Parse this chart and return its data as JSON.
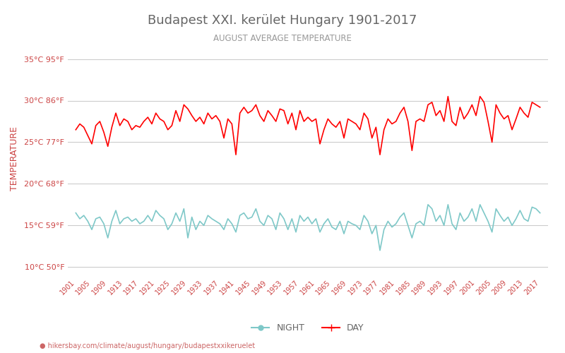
{
  "title": "Budapest XXI. kerület Hungary 1901-2017",
  "subtitle": "AUGUST AVERAGE TEMPERATURE",
  "xlabel_url": "hikersbay.com/climate/august/hungary/budapestxxikeruelet",
  "ylabel": "TEMPERATURE",
  "years": [
    1901,
    1902,
    1903,
    1904,
    1905,
    1906,
    1907,
    1908,
    1909,
    1910,
    1911,
    1912,
    1913,
    1914,
    1915,
    1916,
    1917,
    1918,
    1919,
    1920,
    1921,
    1922,
    1923,
    1924,
    1925,
    1926,
    1927,
    1928,
    1929,
    1930,
    1931,
    1932,
    1933,
    1934,
    1935,
    1936,
    1937,
    1938,
    1939,
    1940,
    1941,
    1942,
    1943,
    1944,
    1945,
    1946,
    1947,
    1948,
    1949,
    1950,
    1951,
    1952,
    1953,
    1954,
    1955,
    1956,
    1957,
    1958,
    1959,
    1960,
    1961,
    1962,
    1963,
    1964,
    1965,
    1966,
    1967,
    1968,
    1969,
    1970,
    1971,
    1972,
    1973,
    1974,
    1975,
    1976,
    1977,
    1978,
    1979,
    1980,
    1981,
    1982,
    1983,
    1984,
    1985,
    1986,
    1987,
    1988,
    1989,
    1990,
    1991,
    1992,
    1993,
    1994,
    1995,
    1996,
    1997,
    1998,
    1999,
    2000,
    2001,
    2002,
    2003,
    2004,
    2005,
    2006,
    2007,
    2008,
    2009,
    2010,
    2011,
    2012,
    2013,
    2014,
    2015,
    2016,
    2017
  ],
  "day_temps": [
    26.5,
    27.2,
    26.8,
    25.8,
    24.8,
    27.0,
    27.5,
    26.2,
    24.5,
    26.8,
    28.5,
    27.0,
    27.8,
    27.5,
    26.5,
    27.0,
    26.8,
    27.5,
    28.0,
    27.2,
    28.5,
    27.8,
    27.5,
    26.5,
    27.0,
    28.8,
    27.5,
    29.5,
    29.0,
    28.2,
    27.5,
    28.0,
    27.2,
    28.5,
    27.8,
    28.2,
    27.5,
    25.5,
    27.8,
    27.2,
    23.5,
    28.5,
    29.2,
    28.5,
    28.8,
    29.5,
    28.2,
    27.5,
    28.8,
    28.2,
    27.5,
    29.0,
    28.8,
    27.2,
    28.5,
    26.5,
    28.8,
    27.5,
    28.0,
    27.5,
    27.8,
    24.8,
    26.5,
    27.8,
    27.2,
    26.8,
    27.5,
    25.5,
    27.8,
    27.5,
    27.2,
    26.5,
    28.5,
    27.8,
    25.5,
    26.8,
    23.5,
    26.5,
    27.8,
    27.2,
    27.5,
    28.5,
    29.2,
    27.5,
    24.0,
    27.5,
    27.8,
    27.5,
    29.5,
    29.8,
    28.2,
    28.8,
    27.5,
    30.5,
    27.5,
    27.0,
    29.2,
    27.8,
    28.5,
    29.5,
    28.2,
    30.5,
    29.8,
    27.5,
    25.0,
    29.5,
    28.5,
    27.8,
    28.2,
    26.5,
    27.8,
    29.2,
    28.5,
    28.0,
    29.8,
    29.5,
    29.2
  ],
  "night_temps": [
    16.5,
    15.8,
    16.2,
    15.5,
    14.5,
    15.8,
    16.0,
    15.2,
    13.5,
    15.5,
    16.8,
    15.2,
    15.8,
    16.0,
    15.5,
    15.8,
    15.2,
    15.5,
    16.2,
    15.5,
    16.8,
    16.2,
    15.8,
    14.5,
    15.2,
    16.5,
    15.5,
    17.0,
    13.5,
    16.0,
    14.5,
    15.5,
    15.0,
    16.2,
    15.8,
    15.5,
    15.2,
    14.5,
    15.8,
    15.2,
    14.2,
    16.2,
    16.5,
    15.8,
    16.0,
    17.0,
    15.5,
    15.0,
    16.2,
    15.8,
    14.5,
    16.5,
    15.8,
    14.5,
    15.8,
    14.2,
    16.2,
    15.5,
    16.0,
    15.2,
    15.8,
    14.2,
    15.2,
    15.8,
    14.8,
    14.5,
    15.5,
    14.0,
    15.5,
    15.2,
    15.0,
    14.5,
    16.2,
    15.5,
    14.0,
    15.0,
    12.0,
    14.5,
    15.5,
    14.8,
    15.2,
    16.0,
    16.5,
    15.0,
    13.5,
    15.2,
    15.5,
    15.0,
    17.5,
    17.0,
    15.5,
    16.2,
    15.0,
    17.5,
    15.2,
    14.5,
    16.5,
    15.5,
    16.0,
    17.0,
    15.5,
    17.5,
    16.5,
    15.5,
    14.2,
    17.0,
    16.2,
    15.5,
    16.0,
    15.0,
    15.8,
    16.8,
    15.8,
    15.5,
    17.2,
    17.0,
    16.5
  ],
  "day_color": "#ff0000",
  "night_color": "#7ec8c8",
  "title_color": "#666666",
  "subtitle_color": "#999999",
  "ylabel_color": "#cc4444",
  "tick_label_color": "#cc4444",
  "url_color": "#cc6666",
  "background_color": "#ffffff",
  "grid_color": "#cccccc",
  "yticks_c": [
    10,
    15,
    20,
    25,
    30,
    35
  ],
  "yticks_f": [
    50,
    59,
    68,
    77,
    86,
    95
  ],
  "ylim": [
    9,
    37
  ],
  "xtick_years": [
    1901,
    1905,
    1909,
    1913,
    1917,
    1921,
    1925,
    1929,
    1933,
    1937,
    1941,
    1945,
    1949,
    1953,
    1957,
    1961,
    1965,
    1969,
    1973,
    1977,
    1981,
    1985,
    1989,
    1993,
    1997,
    2001,
    2005,
    2009,
    2013,
    2017
  ],
  "legend_night": "NIGHT",
  "legend_day": "DAY",
  "line_width": 1.2
}
